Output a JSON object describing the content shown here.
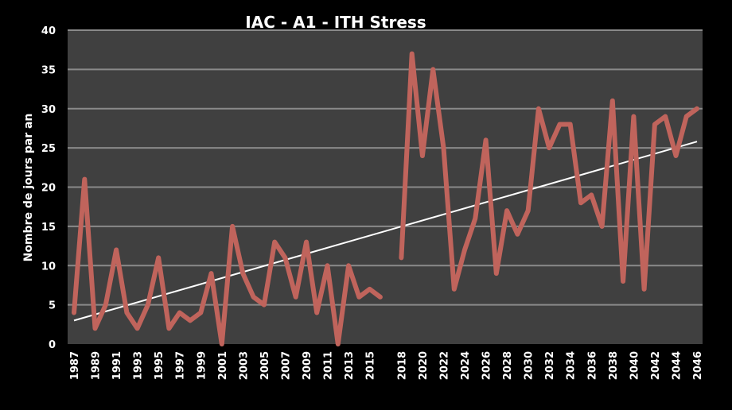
{
  "chart_data": {
    "type": "line",
    "title": "IAC - A1 - ITH Stress",
    "xlabel": "",
    "ylabel": "Nombre de jours par an",
    "ylim": [
      0,
      40
    ],
    "yticks": [
      0,
      5,
      10,
      15,
      20,
      25,
      30,
      35,
      40
    ],
    "grid": true,
    "legend": "none",
    "x": [
      1987,
      1988,
      1989,
      1990,
      1991,
      1992,
      1993,
      1994,
      1995,
      1996,
      1997,
      1998,
      1999,
      2000,
      2001,
      2002,
      2003,
      2004,
      2005,
      2006,
      2007,
      2008,
      2009,
      2010,
      2011,
      2012,
      2013,
      2014,
      2015,
      2016,
      2017,
      2018,
      2019,
      2020,
      2021,
      2022,
      2023,
      2024,
      2025,
      2026,
      2027,
      2028,
      2029,
      2030,
      2031,
      2032,
      2033,
      2034,
      2035,
      2036,
      2037,
      2038,
      2039,
      2040,
      2041,
      2042,
      2043,
      2044,
      2045,
      2046
    ],
    "xtick_labels": [
      "1987",
      "1989",
      "1991",
      "1993",
      "1995",
      "1997",
      "1999",
      "2001",
      "2003",
      "2005",
      "2007",
      "2009",
      "2011",
      "2013",
      "2015",
      "2018",
      "2020",
      "2022",
      "2024",
      "2026",
      "2028",
      "2030",
      "2032",
      "2034",
      "2036",
      "2038",
      "2040",
      "2042",
      "2044",
      "2046"
    ],
    "series": [
      {
        "name": "",
        "color": "#c0645c",
        "values": [
          4,
          21,
          2,
          5,
          12,
          4,
          2,
          5,
          11,
          2,
          4,
          3,
          4,
          9,
          0,
          15,
          9,
          6,
          5,
          13,
          11,
          6,
          13,
          4,
          10,
          0,
          10,
          6,
          7,
          6,
          null,
          11,
          37,
          24,
          35,
          25,
          7,
          12,
          16,
          26,
          9,
          17,
          14,
          17,
          30,
          25,
          28,
          28,
          18,
          19,
          15,
          31,
          8,
          29,
          7,
          28,
          29,
          24,
          29,
          30
        ]
      }
    ],
    "trendline": {
      "color": "#ffffff",
      "start_value": 3.0,
      "end_value": 25.8
    },
    "colors": {
      "background": "#000000",
      "plot_area": "#404040",
      "gridline": "#8a8a8a"
    }
  }
}
